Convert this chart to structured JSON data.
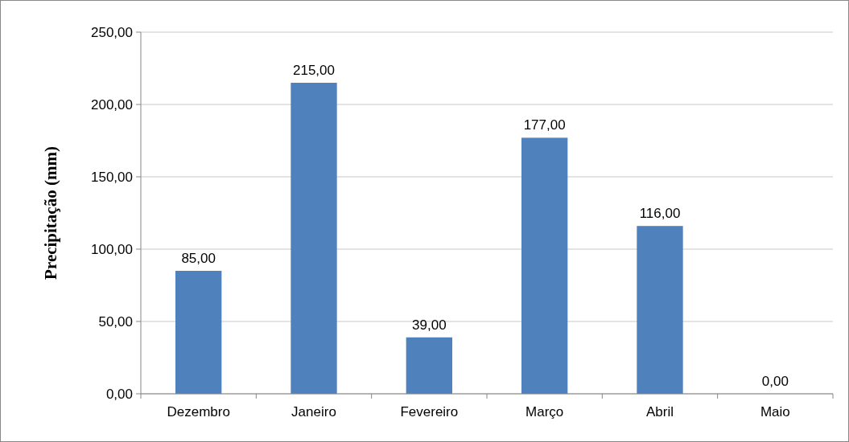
{
  "chart_data": {
    "type": "bar",
    "ylabel": "Precipitação (mm)",
    "categories": [
      "Dezembro",
      "Janeiro",
      "Fevereiro",
      "Março",
      "Abril",
      "Maio"
    ],
    "values": [
      85,
      215,
      39,
      177,
      116,
      0
    ],
    "value_labels": [
      "85,00",
      "215,00",
      "39,00",
      "177,00",
      "116,00",
      "0,00"
    ],
    "color": "#4f81bd",
    "ylim": [
      0,
      250
    ],
    "yticks": [
      {
        "value": 0,
        "label": "0,00"
      },
      {
        "value": 50,
        "label": "50,00"
      },
      {
        "value": 100,
        "label": "100,00"
      },
      {
        "value": 150,
        "label": "150,00"
      },
      {
        "value": 200,
        "label": "200,00"
      },
      {
        "value": 250,
        "label": "250,00"
      }
    ],
    "grid": "y"
  }
}
